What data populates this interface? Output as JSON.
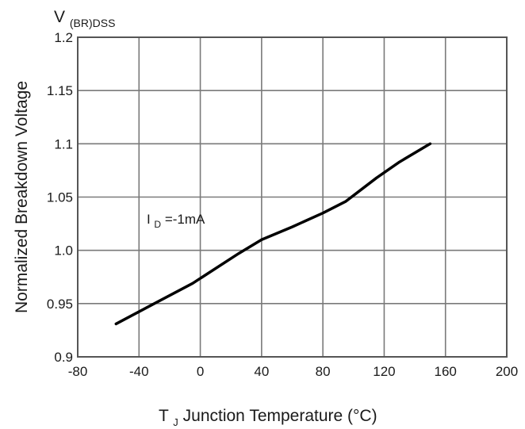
{
  "chart_data": {
    "type": "line",
    "title": "",
    "xlabel": {
      "main": "T",
      "sub": "J",
      "rest": " Junction Temperature (°C)"
    },
    "ylabel": "Normalized Breakdown Voltage",
    "yunit": {
      "main": "V",
      "sub": "(BR)DSS"
    },
    "xlim": [
      -80,
      200
    ],
    "ylim": [
      0.9,
      1.2
    ],
    "xticks": [
      "-80",
      "-40",
      "0",
      "40",
      "80",
      "120",
      "160",
      "200"
    ],
    "yticks": [
      "0.9",
      "0.95",
      "1.0",
      "1.05",
      "1.1",
      "1.15",
      "1.2"
    ],
    "grid": true,
    "annotation": {
      "main": "I",
      "sub": "D",
      "rest": "=-1mA"
    },
    "series": [
      {
        "x": [
          -55,
          -30,
          -5,
          25,
          40,
          60,
          80,
          95,
          115,
          130,
          150
        ],
        "y": [
          0.931,
          0.95,
          0.969,
          0.997,
          1.01,
          1.022,
          1.035,
          1.046,
          1.068,
          1.083,
          1.1
        ]
      }
    ],
    "colors": {
      "line": "#000000",
      "grid": "#7a7a7a"
    }
  }
}
